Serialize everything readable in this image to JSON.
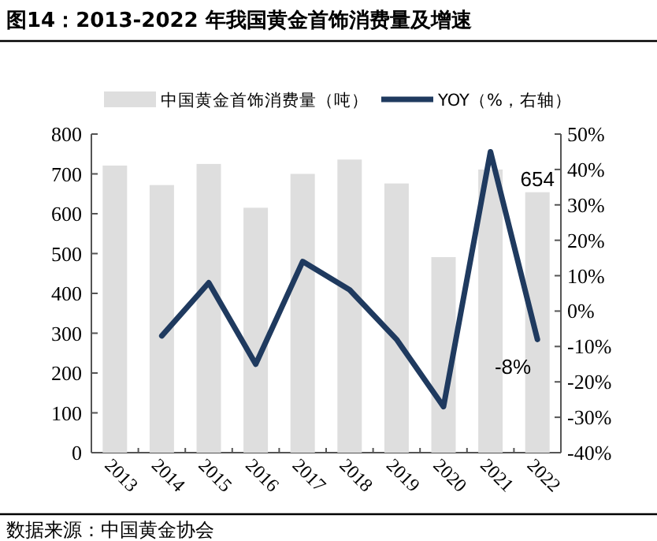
{
  "chart_data": {
    "type": "bar",
    "title": "图14：2013-2022 年我国黄金首饰消费量及增速",
    "categories": [
      "2013",
      "2014",
      "2015",
      "2016",
      "2017",
      "2018",
      "2019",
      "2020",
      "2021",
      "2022"
    ],
    "series": [
      {
        "name": "中国黄金首饰消费量（吨）",
        "color": "#dedede",
        "values": [
          721,
          672,
          725,
          615,
          700,
          736,
          676,
          491,
          711,
          654
        ],
        "value_labels": [
          null,
          null,
          null,
          null,
          null,
          null,
          null,
          null,
          null,
          "654"
        ]
      },
      {
        "name": "YOY（%，右轴）",
        "type": "line",
        "axis": "y2",
        "color": "#1f3a5f",
        "values": [
          null,
          -7,
          8,
          -15,
          14,
          6,
          -8,
          -27,
          45,
          -8
        ],
        "value_labels": [
          null,
          null,
          null,
          null,
          null,
          null,
          null,
          null,
          null,
          "-8%"
        ]
      }
    ],
    "ylim": [
      0,
      800
    ],
    "yticks": [
      0,
      100,
      200,
      300,
      400,
      500,
      600,
      700,
      800
    ],
    "y2lim": [
      -40,
      50
    ],
    "y2ticks": [
      {
        "value": -40,
        "label": "-40%"
      },
      {
        "value": -30,
        "label": "-30%"
      },
      {
        "value": -20,
        "label": "-20%"
      },
      {
        "value": -10,
        "label": "-10%"
      },
      {
        "value": 0,
        "label": "0%"
      },
      {
        "value": 10,
        "label": "10%"
      },
      {
        "value": 20,
        "label": "20%"
      },
      {
        "value": 30,
        "label": "30%"
      },
      {
        "value": 40,
        "label": "40%"
      },
      {
        "value": 50,
        "label": "50%"
      }
    ],
    "legend": "top",
    "annotations": [
      "数据来源：中国黄金协会"
    ]
  }
}
